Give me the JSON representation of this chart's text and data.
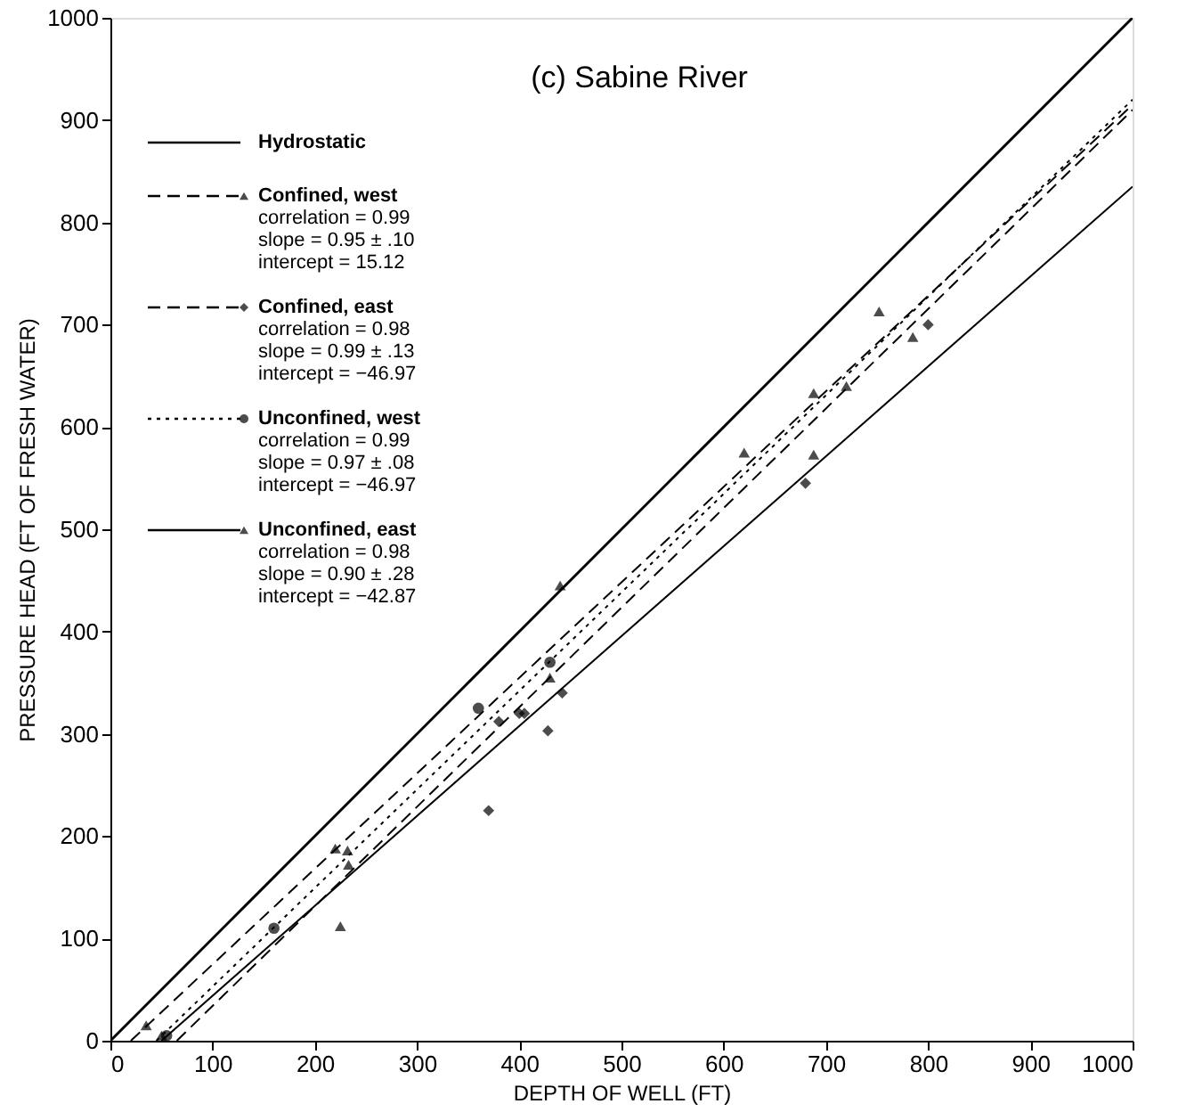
{
  "chart_data": {
    "type": "scatter",
    "title": "(c) Sabine River",
    "xlabel": "DEPTH OF WELL (FT)",
    "ylabel": "PRESSURE HEAD (FT OF FRESH WATER)",
    "xlim": [
      0,
      1000
    ],
    "ylim": [
      0,
      1000
    ],
    "xticks": [
      0,
      100,
      200,
      300,
      400,
      500,
      600,
      700,
      800,
      900,
      1000
    ],
    "yticks": [
      0,
      100,
      200,
      300,
      400,
      500,
      600,
      700,
      800,
      900,
      1000
    ],
    "grid": false,
    "legend": "top left",
    "series": [
      {
        "name": "Hydrostatic",
        "type": "line",
        "color": "#000000",
        "line_style": "solid",
        "x": [
          0,
          1000
        ],
        "values": [
          0,
          1000
        ]
      },
      {
        "name": "Confined, west",
        "color": "#000000",
        "marker": "triangle",
        "x": [
          35,
          220,
          232,
          233,
          440,
          620,
          688,
          688,
          720,
          752,
          785
        ],
        "values": [
          15,
          188,
          186,
          172,
          445,
          575,
          633,
          573,
          640,
          713,
          688
        ]
      },
      {
        "type": "line",
        "color": "#000000",
        "line_style": "dashed",
        "x": [
          20,
          1000
        ],
        "values": [
          0,
          915
        ]
      },
      {
        "name": "Confined, east",
        "color": "#000000",
        "marker": "diamond",
        "x": [
          370,
          380,
          400,
          405,
          428,
          442,
          680,
          800
        ],
        "values": [
          225,
          312,
          320,
          320,
          303,
          340,
          545,
          700
        ]
      },
      {
        "type": "line",
        "color": "#000000",
        "line_style": "dashed",
        "x": [
          65,
          1000
        ],
        "values": [
          0,
          910
        ]
      },
      {
        "name": "Unconfined, west",
        "color": "#000000",
        "marker": "circle",
        "x": [
          55,
          160,
          360,
          430
        ],
        "values": [
          5,
          110,
          325,
          370
        ]
      },
      {
        "type": "line",
        "color": "#000000",
        "line_style": "dotted",
        "x": [
          45,
          1000
        ],
        "values": [
          0,
          920
        ]
      },
      {
        "name": "Unconfined, east",
        "color": "#000000",
        "marker": "triangle",
        "x": [
          50,
          225,
          430
        ],
        "values": [
          5,
          112,
          355
        ]
      },
      {
        "type": "line",
        "color": "#000000",
        "line_style": "solid",
        "x": [
          50,
          1000
        ],
        "values": [
          0,
          835
        ]
      }
    ],
    "annotations": [
      "correlation = 0.99",
      "slope = 0.95 ± .10",
      "intercept = 15.12",
      "correlation = 0.98",
      "slope = 0.99 ± .13",
      "intercept = −46.97",
      "correlation = 0.99",
      "slope = 0.97 ± .08",
      "intercept = −46.97",
      "correlation = 0.98",
      "slope = 0.90 ± .28",
      "intercept = −42.87"
    ]
  }
}
